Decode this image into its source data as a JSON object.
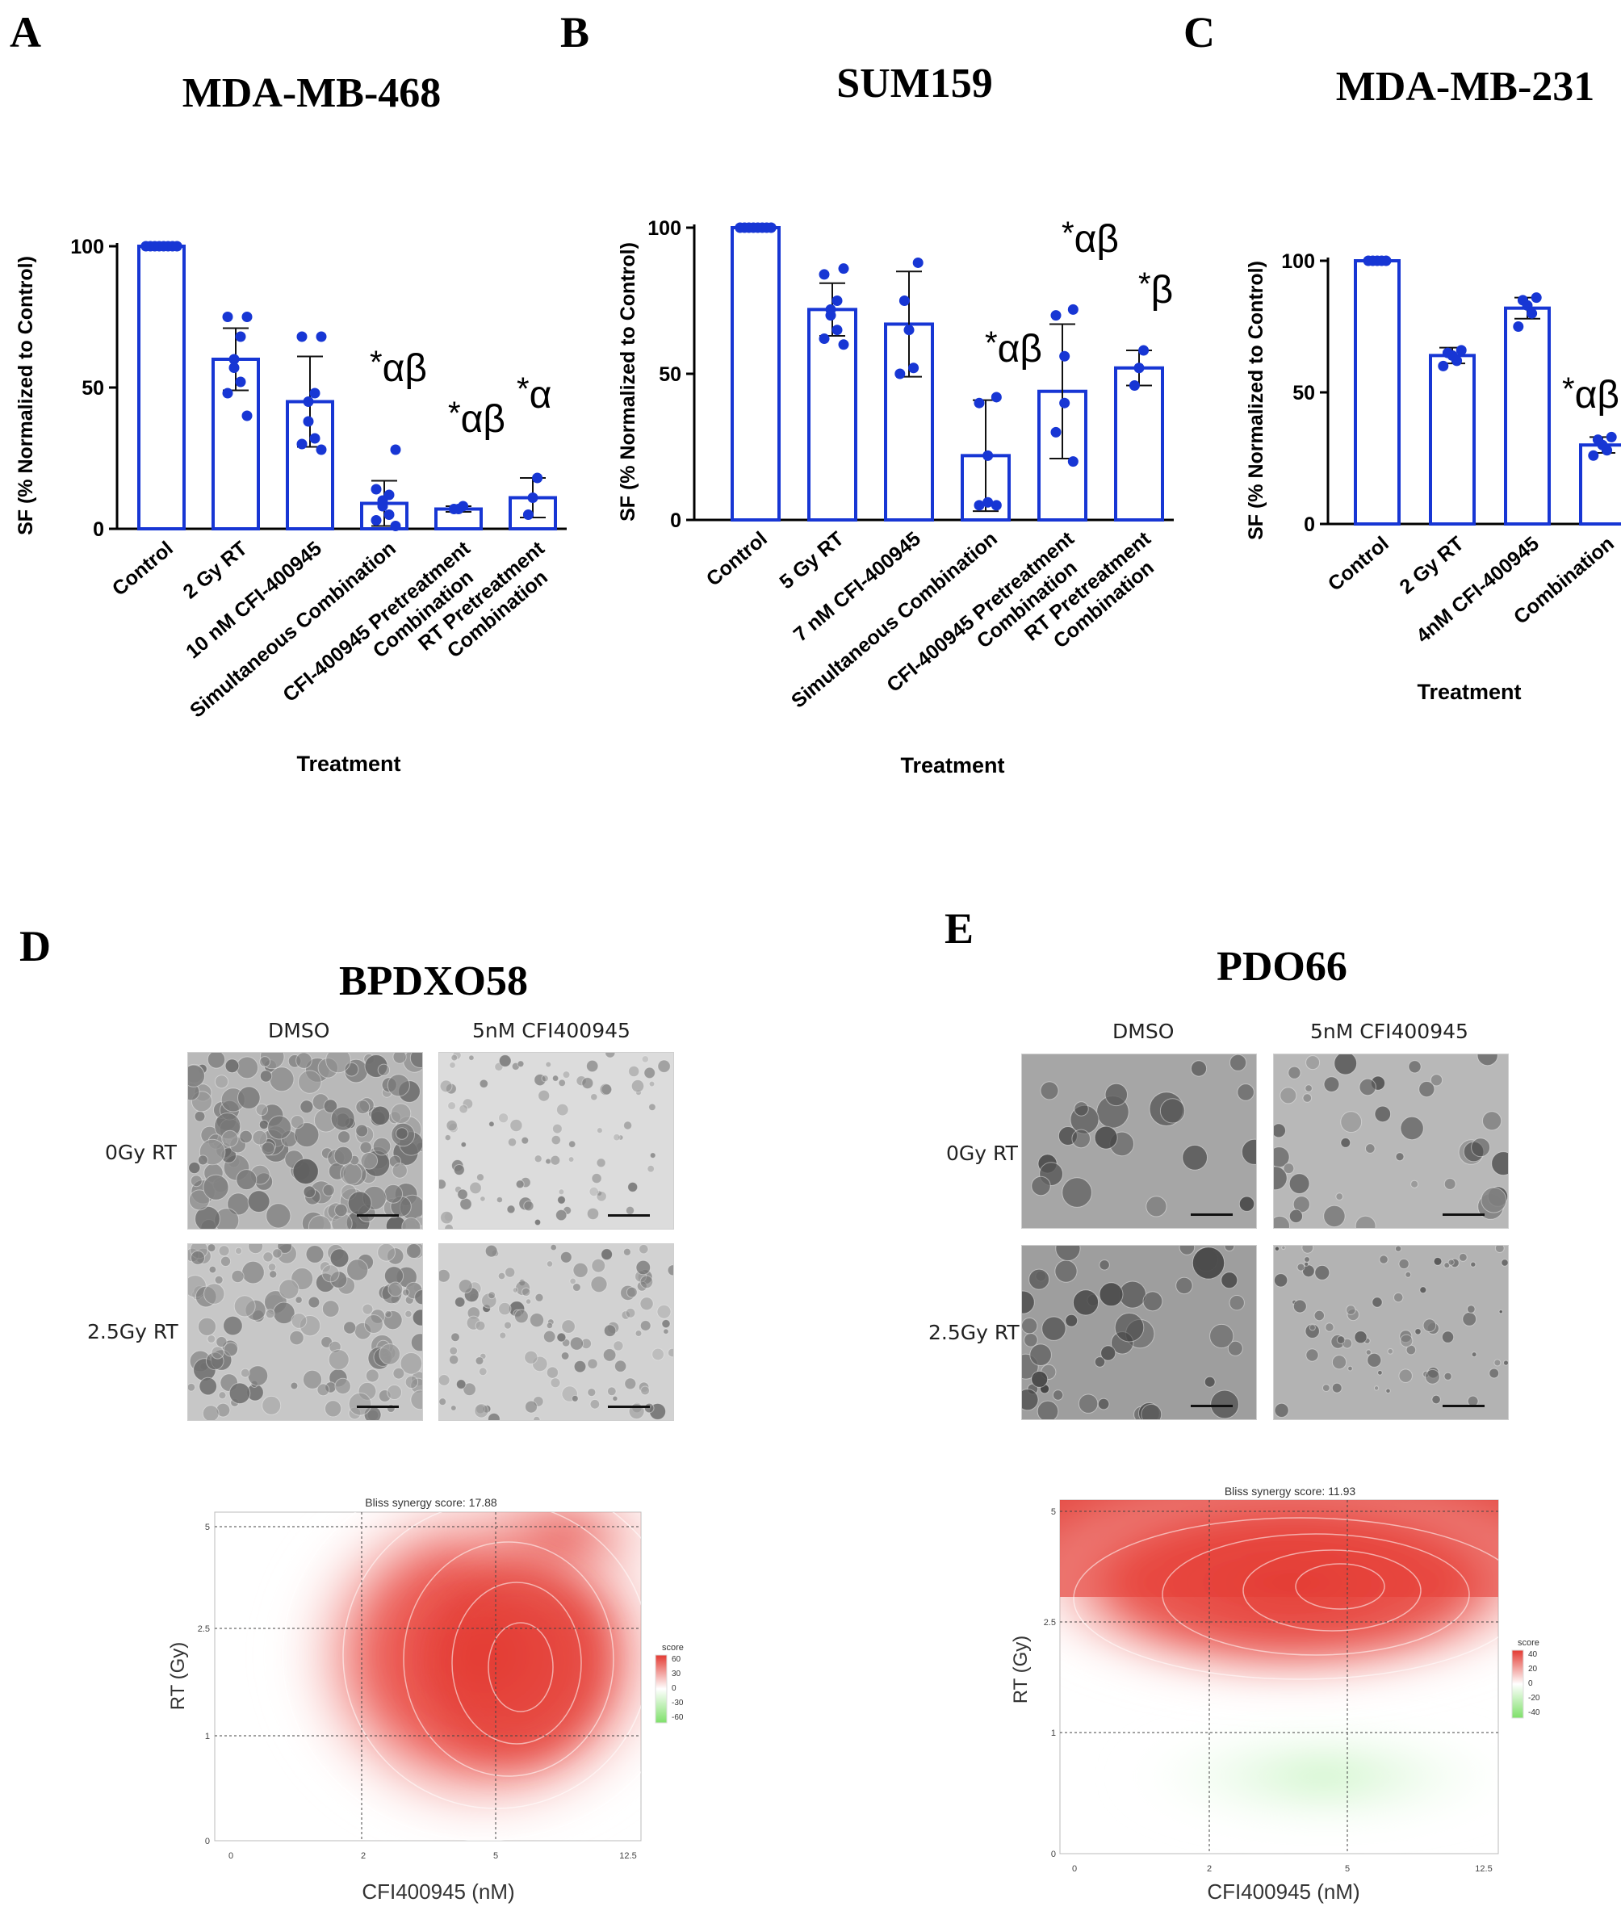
{
  "bar_charts": [
    {
      "panel": "A",
      "title": "MDA-MB-468",
      "ylabel": "SF (% Normalized to Control)",
      "xlabel": "Treatment",
      "ylim": [
        0,
        100
      ],
      "yticks": [
        0,
        50,
        100
      ],
      "categories": [
        "Control",
        "2 Gy RT",
        "10 nM CFI-400945",
        "Simultaneous Combination",
        "CFI-400945 Pretreatment Combination",
        "RT Pretreatment Combination"
      ],
      "means": [
        100,
        60,
        45,
        9,
        7,
        11
      ],
      "errors": [
        0,
        11,
        16,
        8,
        1,
        7
      ],
      "points": [
        [
          100,
          100,
          100,
          100,
          100,
          100,
          100,
          100
        ],
        [
          75,
          75,
          68,
          60,
          57,
          52,
          48,
          40
        ],
        [
          68,
          68,
          48,
          45,
          38,
          32,
          30,
          28
        ],
        [
          28,
          14,
          12,
          10,
          8,
          5,
          3,
          1
        ],
        [
          8,
          7,
          7
        ],
        [
          18,
          11,
          5
        ]
      ],
      "annotations": [
        "",
        "",
        "*αβ",
        "*αβ",
        "*α",
        ""
      ]
    },
    {
      "panel": "B",
      "title": "SUM159",
      "ylabel": "SF (% Normalized to Control)",
      "xlabel": "Treatment",
      "ylim": [
        0,
        100
      ],
      "yticks": [
        0,
        50,
        100
      ],
      "categories": [
        "Control",
        "5 Gy RT",
        "7 nM CFI-400945",
        "Simultaneous Combination",
        "CFI-400945 Pretreatment Combination",
        "RT Pretreatment Combination"
      ],
      "means": [
        100,
        72,
        67,
        22,
        44,
        52
      ],
      "errors": [
        0,
        9,
        18,
        19,
        23,
        6
      ],
      "points": [
        [
          100,
          100,
          100,
          100,
          100,
          100,
          100,
          100
        ],
        [
          86,
          84,
          75,
          72,
          70,
          65,
          62,
          60
        ],
        [
          88,
          75,
          65,
          52,
          50
        ],
        [
          42,
          40,
          22,
          6,
          5,
          5
        ],
        [
          72,
          70,
          56,
          40,
          30,
          20
        ],
        [
          58,
          52,
          46
        ]
      ],
      "annotations": [
        "",
        "",
        "*αβ",
        "*αβ",
        "*β",
        ""
      ]
    },
    {
      "panel": "C",
      "title": "MDA-MB-231",
      "ylabel": "SF (% Normalized to Control)",
      "xlabel": "Treatment",
      "ylim": [
        0,
        100
      ],
      "yticks": [
        0,
        50,
        100
      ],
      "categories": [
        "Control",
        "2 Gy RT",
        "4nM CFI-400945",
        "Combination"
      ],
      "means": [
        100,
        64,
        82,
        30
      ],
      "errors": [
        0,
        3,
        4,
        3
      ],
      "points": [
        [
          100,
          100,
          100,
          100,
          100
        ],
        [
          66,
          65,
          64,
          62,
          60
        ],
        [
          86,
          85,
          83,
          80,
          75
        ],
        [
          33,
          32,
          30,
          28,
          26
        ]
      ],
      "annotations": [
        "",
        "",
        "",
        "*αβ"
      ]
    }
  ],
  "organoid_panels": [
    {
      "panel": "D",
      "title": "BPDXO58",
      "columns": [
        "DMSO",
        "5nM CFI400945"
      ],
      "rows": [
        "0Gy RT",
        "2.5Gy RT"
      ],
      "synergy_title": "Bliss synergy score: 17.88",
      "xlabel": "CFI400945 (nM)",
      "ylabel": "RT (Gy)",
      "xticks": [
        "0",
        "2",
        "5",
        "12.5"
      ],
      "yticks": [
        "0",
        "1",
        "2.5",
        "5"
      ],
      "legend_title": "score",
      "legend_ticks": [
        "60",
        "30",
        "0",
        "-30",
        "-60"
      ]
    },
    {
      "panel": "E",
      "title": "PDO66",
      "columns": [
        "DMSO",
        "5nM CFI400945"
      ],
      "rows": [
        "0Gy RT",
        "2.5Gy RT"
      ],
      "synergy_title": "Bliss synergy score: 11.93",
      "xlabel": "CFI400945 (nM)",
      "ylabel": "RT (Gy)",
      "xticks": [
        "0",
        "2",
        "5",
        "12.5"
      ],
      "yticks": [
        "0",
        "1",
        "2.5",
        "5"
      ],
      "legend_title": "score",
      "legend_ticks": [
        "40",
        "20",
        "0",
        "-20",
        "-40"
      ]
    }
  ],
  "chart_data": [
    {
      "type": "bar",
      "title": "MDA-MB-468",
      "categories": [
        "Control",
        "2 Gy RT",
        "10 nM CFI-400945",
        "Simultaneous Combination",
        "CFI-400945 Pretreatment Combination",
        "RT Pretreatment Combination"
      ],
      "values": [
        100,
        60,
        45,
        9,
        7,
        11
      ],
      "xlabel": "Treatment",
      "ylabel": "SF (% Normalized to Control)",
      "ylim": [
        0,
        100
      ]
    },
    {
      "type": "bar",
      "title": "SUM159",
      "categories": [
        "Control",
        "5 Gy RT",
        "7 nM CFI-400945",
        "Simultaneous Combination",
        "CFI-400945 Pretreatment Combination",
        "RT Pretreatment Combination"
      ],
      "values": [
        100,
        72,
        67,
        22,
        44,
        52
      ],
      "xlabel": "Treatment",
      "ylabel": "SF (% Normalized to Control)",
      "ylim": [
        0,
        100
      ]
    },
    {
      "type": "bar",
      "title": "MDA-MB-231",
      "categories": [
        "Control",
        "2 Gy RT",
        "4nM CFI-400945",
        "Combination"
      ],
      "values": [
        100,
        64,
        82,
        30
      ],
      "xlabel": "Treatment",
      "ylabel": "SF (% Normalized to Control)",
      "ylim": [
        0,
        100
      ]
    },
    {
      "type": "heatmap",
      "title": "Bliss synergy score: 17.88",
      "xlabel": "CFI400945 (nM)",
      "ylabel": "RT (Gy)",
      "x": [
        "0",
        "2",
        "5",
        "12.5"
      ],
      "y": [
        "0",
        "1",
        "2.5",
        "5"
      ]
    },
    {
      "type": "heatmap",
      "title": "Bliss synergy score: 11.93",
      "xlabel": "CFI400945 (nM)",
      "ylabel": "RT (Gy)",
      "x": [
        "0",
        "2",
        "5",
        "12.5"
      ],
      "y": [
        "0",
        "1",
        "2.5",
        "5"
      ]
    }
  ]
}
